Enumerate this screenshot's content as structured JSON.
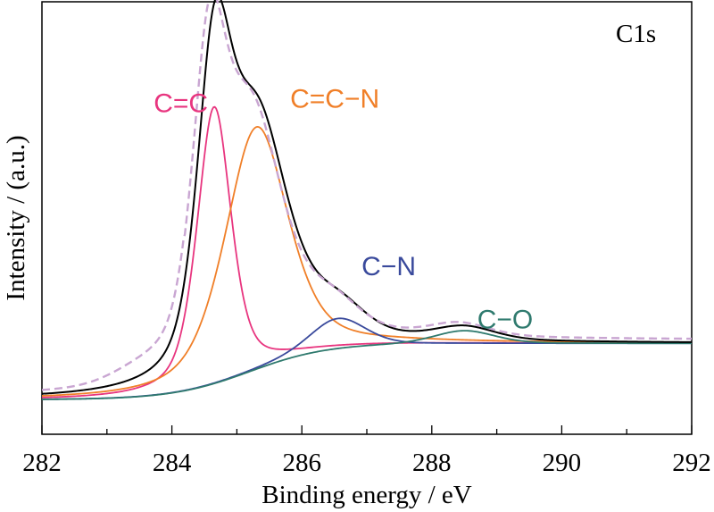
{
  "chart_data": {
    "type": "line",
    "panel_label": "C1s",
    "xlabel": "Binding energy / eV",
    "ylabel": "Intensity / (a.u.)",
    "xlim": [
      282,
      292
    ],
    "ylim": [
      0,
      1
    ],
    "x_ticks": [
      282,
      284,
      286,
      288,
      290,
      292
    ],
    "x_ticks_reversed": false,
    "grid": false,
    "background": {
      "B0": 0.08,
      "B1": 0.13,
      "center": 285.2,
      "width": 0.6
    },
    "series": [
      {
        "name": "C=C",
        "role": "component",
        "color": "#e8357f",
        "style": "solid",
        "peak": {
          "center": 284.65,
          "amplitude": 0.64,
          "fwhm": 0.62,
          "eta": 0.5
        }
      },
      {
        "name": "C=C−N",
        "role": "component",
        "color": "#f07f28",
        "style": "solid",
        "peak": {
          "center": 285.3,
          "amplitude": 0.56,
          "fwhm": 1.15,
          "eta": 0.5
        }
      },
      {
        "name": "C−N",
        "role": "component",
        "color": "#3a4a9c",
        "style": "solid",
        "peak": {
          "center": 286.55,
          "amplitude": 0.07,
          "fwhm": 1.0,
          "eta": 0.3
        }
      },
      {
        "name": "C−O",
        "role": "component",
        "color": "#2f7a6e",
        "style": "solid",
        "peak": {
          "center": 288.5,
          "amplitude": 0.03,
          "fwhm": 1.1,
          "eta": 0.3
        }
      },
      {
        "name": "",
        "role": "envelope",
        "color": "#000000",
        "style": "solid"
      },
      {
        "name": "",
        "role": "raw",
        "color": "#c9a6d2",
        "style": "dashed"
      }
    ],
    "annotations": [
      {
        "text": "C=C",
        "color": "#e8357f",
        "x": 283.72,
        "y": 0.745
      },
      {
        "text": "C=C−N",
        "color": "#f07f28",
        "x": 285.82,
        "y": 0.755
      },
      {
        "text": "C−N",
        "color": "#3a4a9c",
        "x": 286.92,
        "y": 0.368
      },
      {
        "text": "C−O",
        "color": "#2f7a6e",
        "x": 288.7,
        "y": 0.245
      }
    ]
  }
}
